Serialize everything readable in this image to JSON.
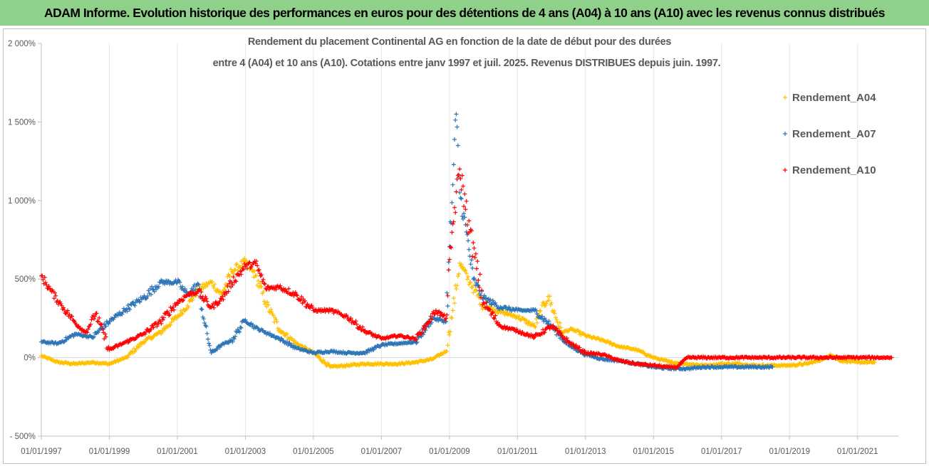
{
  "banner": {
    "title": "ADAM Informe. Evolution historique des performances en euros pour des détentions de 4 ans (A04) à 10 ans (A10) avec les revenus connus distribués"
  },
  "chart_data": {
    "type": "scatter",
    "title_line1": "Rendement du placement Continental AG en fonction de la date de début pour des durées",
    "title_line2": "entre 4 (A04) et 10 ans (A10).  Cotations entre janv 1997 et juil. 2025. Revenus DISTRIBUES depuis juin. 1997.",
    "xlabel": "",
    "ylabel": "",
    "ylim": [
      -500,
      2000
    ],
    "xlim": [
      1997.0,
      2022.2
    ],
    "y_ticks": [
      -500,
      0,
      500,
      1000,
      1500,
      2000
    ],
    "y_tick_labels": [
      "- 500%",
      "0%",
      "500%",
      "1 000%",
      "1 500%",
      "2 000%"
    ],
    "x_ticks": [
      1997,
      1999,
      2001,
      2003,
      2005,
      2007,
      2009,
      2011,
      2013,
      2015,
      2017,
      2019,
      2021
    ],
    "x_tick_labels": [
      "01/01/1997",
      "01/01/1999",
      "01/01/2001",
      "01/01/2003",
      "01/01/2005",
      "01/01/2007",
      "01/01/2009",
      "01/01/2011",
      "01/01/2013",
      "01/01/2015",
      "01/01/2017",
      "01/01/2019",
      "01/01/2021"
    ],
    "grid": true,
    "legend_position": "right",
    "marker": "+",
    "series": [
      {
        "name": "Rendement_A04",
        "color": "#ffc000",
        "x": [
          1997.0,
          1997.5,
          1998.0,
          1998.5,
          1999.0,
          1999.5,
          2000.0,
          2000.5,
          2001.0,
          2001.3,
          2001.6,
          2002.0,
          2002.3,
          2002.6,
          2003.0,
          2003.3,
          2003.6,
          2004.0,
          2004.5,
          2005.0,
          2005.5,
          2006.0,
          2006.5,
          2007.0,
          2007.5,
          2008.0,
          2008.5,
          2008.9,
          2009.1,
          2009.3,
          2009.6,
          2010.0,
          2010.5,
          2011.0,
          2011.5,
          2011.9,
          2012.3,
          2012.6,
          2013.0,
          2013.5,
          2014.0,
          2014.5,
          2015.0,
          2015.5,
          2016.0,
          2016.5,
          2017.0,
          2017.5,
          2018.0,
          2018.5,
          2019.0,
          2019.5,
          2020.0,
          2020.2,
          2020.5,
          2021.0,
          2021.5
        ],
        "y": [
          10,
          -30,
          -40,
          -30,
          -40,
          0,
          100,
          160,
          260,
          330,
          430,
          480,
          400,
          550,
          610,
          520,
          350,
          180,
          90,
          30,
          -60,
          -50,
          -40,
          -40,
          -40,
          -30,
          -10,
          40,
          300,
          600,
          480,
          330,
          290,
          260,
          200,
          390,
          160,
          180,
          140,
          110,
          70,
          50,
          0,
          -30,
          -40,
          -50,
          -40,
          -40,
          -50,
          -50,
          -50,
          -40,
          -10,
          20,
          -20,
          -30,
          -30
        ]
      },
      {
        "name": "Rendement_A07",
        "color": "#2e75b6",
        "x": [
          1997.0,
          1997.5,
          1998.0,
          1998.5,
          1999.0,
          1999.5,
          2000.0,
          2000.5,
          2001.0,
          2001.3,
          2001.6,
          2001.8,
          2002.0,
          2002.3,
          2002.6,
          2003.0,
          2003.3,
          2003.6,
          2004.0,
          2004.5,
          2005.0,
          2005.5,
          2006.0,
          2006.5,
          2007.0,
          2007.5,
          2008.0,
          2008.5,
          2008.9,
          2009.1,
          2009.2,
          2009.3,
          2009.5,
          2009.7,
          2010.0,
          2010.5,
          2011.0,
          2011.5,
          2012.0,
          2012.5,
          2013.0,
          2013.5,
          2014.0,
          2014.5,
          2015.0,
          2015.5,
          2016.0,
          2016.5,
          2017.0,
          2017.5,
          2018.0,
          2018.5
        ],
        "y": [
          100,
          90,
          150,
          130,
          230,
          310,
          380,
          480,
          480,
          400,
          470,
          220,
          30,
          80,
          110,
          240,
          190,
          160,
          120,
          60,
          30,
          40,
          30,
          30,
          80,
          90,
          100,
          250,
          230,
          1100,
          1550,
          1050,
          800,
          500,
          380,
          320,
          300,
          300,
          200,
          80,
          20,
          -10,
          -20,
          -40,
          -60,
          -70,
          -70,
          -60,
          -60,
          -60,
          -60,
          -60
        ]
      },
      {
        "name": "Rendement_A10",
        "color": "#ff0000",
        "x": [
          1997.0,
          1997.3,
          1997.6,
          1998.0,
          1998.3,
          1998.6,
          1999.0,
          1999.5,
          2000.0,
          2000.5,
          2001.0,
          2001.3,
          2001.6,
          2002.0,
          2002.3,
          2002.6,
          2003.0,
          2003.3,
          2003.6,
          2004.0,
          2004.5,
          2005.0,
          2005.5,
          2006.0,
          2006.5,
          2007.0,
          2007.5,
          2008.0,
          2008.3,
          2008.6,
          2008.9,
          2009.1,
          2009.3,
          2009.6,
          2010.0,
          2010.5,
          2011.0,
          2011.5,
          2012.0,
          2012.5,
          2013.0,
          2013.5,
          2014.0,
          2014.5,
          2015.0,
          2015.4,
          2015.7,
          2016.0,
          2017.0,
          2018.0,
          2019.0,
          2020.0,
          2021.0,
          2022.0
        ],
        "y": [
          520,
          420,
          330,
          220,
          160,
          280,
          50,
          100,
          150,
          230,
          350,
          400,
          420,
          320,
          370,
          480,
          580,
          600,
          440,
          450,
          400,
          300,
          300,
          260,
          170,
          120,
          140,
          120,
          200,
          300,
          250,
          850,
          1200,
          800,
          350,
          200,
          170,
          130,
          200,
          100,
          30,
          20,
          -20,
          -40,
          -50,
          -60,
          -60,
          0,
          0,
          0,
          0,
          0,
          0,
          0
        ]
      }
    ]
  }
}
